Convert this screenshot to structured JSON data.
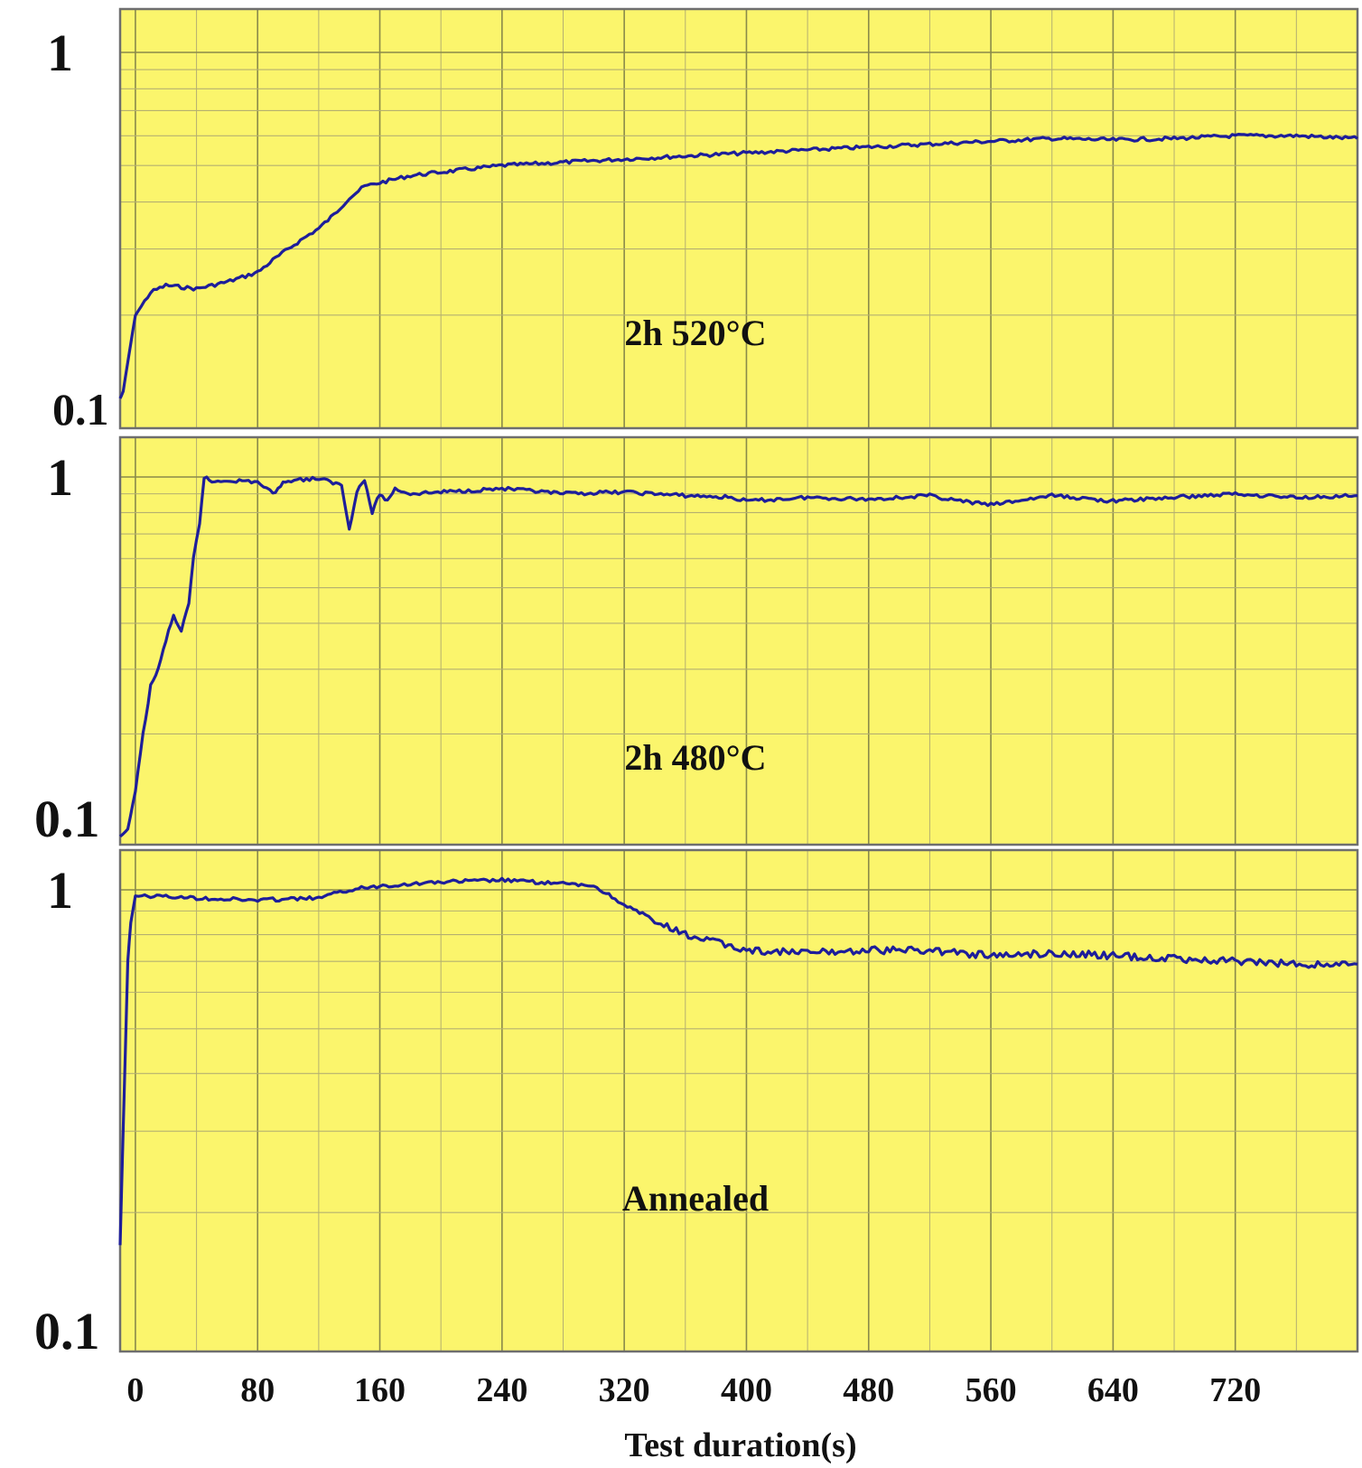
{
  "colors": {
    "plot_background": "#fbf56c",
    "grid_major": "#8a8a4a",
    "grid_minor": "#b5b070",
    "trace": "#1e1e9a",
    "frame": "#6e6e6e"
  },
  "chart_data": {
    "type": "line",
    "layout": "three vertically stacked panels sharing the x axis",
    "x_axis": {
      "label": "Test duration(s)",
      "ticks": [
        "0",
        "80",
        "160",
        "240",
        "320",
        "400",
        "480",
        "560",
        "640",
        "720"
      ],
      "range": [
        -10,
        800
      ],
      "grid": true
    },
    "y_axis": {
      "scale": "log",
      "range": [
        0.1,
        1
      ],
      "grid": true
    },
    "panels": [
      {
        "label": "2h 520°C",
        "y_ticks": [
          "1",
          "0.1"
        ],
        "series": {
          "x": [
            -10,
            -8,
            -5,
            0,
            10,
            20,
            40,
            60,
            80,
            90,
            100,
            110,
            120,
            130,
            140,
            150,
            160,
            180,
            200,
            240,
            280,
            320,
            360,
            400,
            440,
            480,
            520,
            560,
            600,
            640,
            680,
            720,
            760,
            800
          ],
          "y": [
            0.12,
            0.125,
            0.15,
            0.2,
            0.23,
            0.24,
            0.235,
            0.245,
            0.26,
            0.28,
            0.3,
            0.32,
            0.34,
            0.37,
            0.41,
            0.44,
            0.45,
            0.47,
            0.48,
            0.5,
            0.51,
            0.52,
            0.53,
            0.54,
            0.55,
            0.56,
            0.57,
            0.58,
            0.59,
            0.585,
            0.59,
            0.6,
            0.6,
            0.59
          ]
        }
      },
      {
        "label": "2h 480°C",
        "y_ticks": [
          "1",
          "0.1"
        ],
        "series": {
          "x": [
            -10,
            -5,
            0,
            5,
            10,
            15,
            20,
            25,
            30,
            35,
            38,
            42,
            45,
            50,
            60,
            80,
            90,
            95,
            100,
            120,
            135,
            140,
            145,
            150,
            155,
            160,
            165,
            170,
            180,
            200,
            240,
            280,
            320,
            360,
            390,
            400,
            440,
            480,
            520,
            540,
            560,
            600,
            640,
            680,
            720,
            760,
            800
          ],
          "y": [
            0.105,
            0.11,
            0.14,
            0.2,
            0.27,
            0.3,
            0.36,
            0.42,
            0.38,
            0.45,
            0.6,
            0.75,
            1.0,
            0.97,
            0.98,
            0.97,
            0.9,
            0.95,
            0.98,
            0.99,
            0.95,
            0.72,
            0.92,
            0.98,
            0.8,
            0.9,
            0.86,
            0.93,
            0.9,
            0.91,
            0.93,
            0.9,
            0.91,
            0.89,
            0.88,
            0.86,
            0.88,
            0.87,
            0.89,
            0.86,
            0.84,
            0.89,
            0.86,
            0.88,
            0.9,
            0.88,
            0.89
          ]
        }
      },
      {
        "label": "Annealed",
        "y_ticks": [
          "1",
          "0.1"
        ],
        "series": {
          "x": [
            -10,
            -7,
            -5,
            -3,
            0,
            10,
            40,
            80,
            120,
            140,
            160,
            200,
            240,
            280,
            300,
            320,
            340,
            360,
            380,
            400,
            440,
            480,
            520,
            560,
            600,
            640,
            680,
            720,
            760,
            800
          ],
          "y": [
            0.17,
            0.4,
            0.7,
            0.85,
            0.97,
            0.97,
            0.96,
            0.95,
            0.96,
            1.0,
            1.02,
            1.04,
            1.05,
            1.03,
            1.02,
            0.93,
            0.85,
            0.8,
            0.77,
            0.74,
            0.73,
            0.74,
            0.74,
            0.72,
            0.73,
            0.72,
            0.71,
            0.7,
            0.69,
            0.69
          ]
        }
      }
    ]
  }
}
